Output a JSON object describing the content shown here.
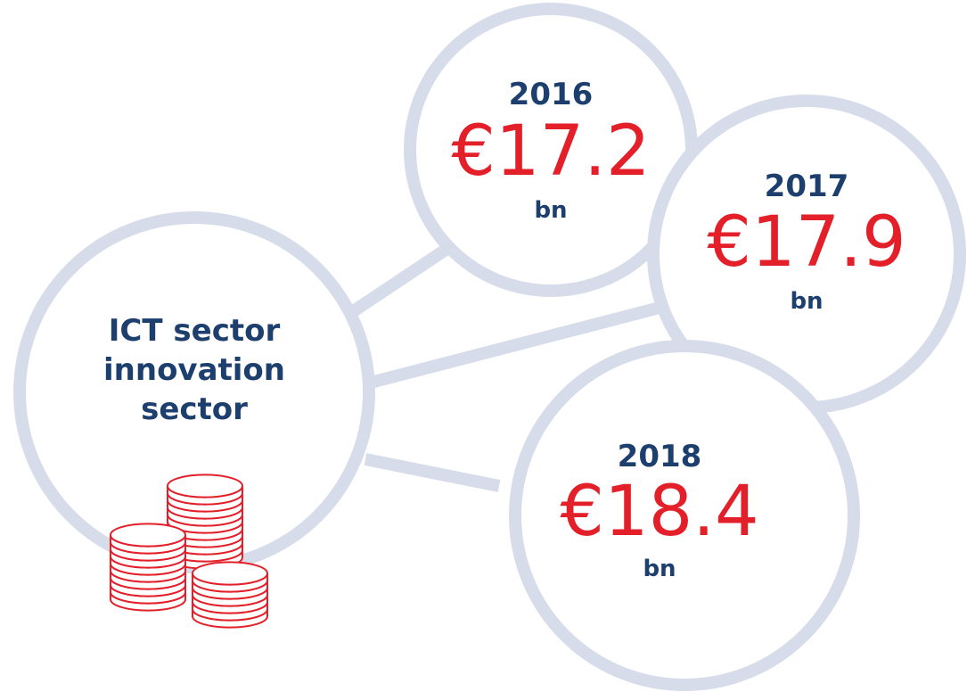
{
  "center": {
    "lines": [
      "ICT sector",
      "innovation",
      "sector"
    ]
  },
  "nodes": [
    {
      "year": "2016",
      "value": "€17.2",
      "unit": "bn"
    },
    {
      "year": "2017",
      "value": "€17.9",
      "unit": "bn"
    },
    {
      "year": "2018",
      "value": "€18.4",
      "unit": "bn"
    }
  ]
}
